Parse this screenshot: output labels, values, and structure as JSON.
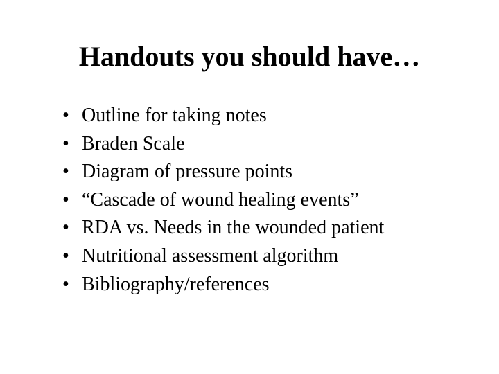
{
  "slide": {
    "title": "Handouts you should have…",
    "bullets": [
      "Outline for taking notes",
      "Braden Scale",
      "Diagram of pressure points",
      "“Cascade of wound healing events”",
      "RDA vs. Needs in the wounded patient",
      "Nutritional assessment algorithm",
      "Bibliography/references"
    ],
    "title_fontsize": 40,
    "body_fontsize": 28,
    "font_family": "Times New Roman",
    "background_color": "#ffffff",
    "text_color": "#000000"
  }
}
